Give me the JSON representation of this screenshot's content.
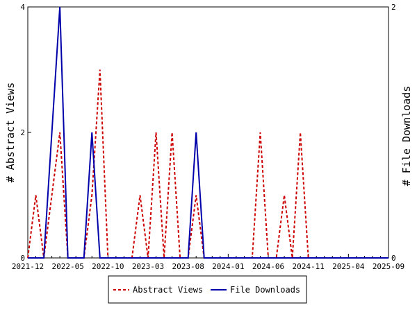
{
  "chart_data": {
    "type": "line",
    "x_tick_labels": [
      "2021-12",
      "2022-05",
      "2022-10",
      "2023-03",
      "2023-08",
      "2024-01",
      "2024-06",
      "2024-11",
      "2025-04",
      "2025-09"
    ],
    "y_left": {
      "label": "# Abstract Views",
      "ylim": [
        0,
        4
      ],
      "ticks": [
        "0",
        "2",
        "4"
      ]
    },
    "y_right": {
      "label": "# File Downloads",
      "ylim": [
        0,
        2
      ],
      "ticks": [
        "0",
        "2"
      ]
    },
    "grid": false,
    "legend_position": "bottom",
    "series": [
      {
        "name": "Abstract Views",
        "axis": "left",
        "color": "#cc0000",
        "style": "dashed",
        "points": [
          [
            "2021-12",
            0
          ],
          [
            "2022-01",
            1
          ],
          [
            "2022-02",
            0
          ],
          [
            "2022-03",
            1
          ],
          [
            "2022-04",
            2
          ],
          [
            "2022-05",
            0
          ],
          [
            "2022-06",
            0
          ],
          [
            "2022-07",
            0
          ],
          [
            "2022-08",
            1
          ],
          [
            "2022-09",
            3
          ],
          [
            "2022-10",
            0
          ],
          [
            "2022-11",
            0
          ],
          [
            "2022-12",
            0
          ],
          [
            "2023-01",
            0
          ],
          [
            "2023-02",
            1
          ],
          [
            "2023-03",
            0
          ],
          [
            "2023-04",
            2
          ],
          [
            "2023-05",
            0
          ],
          [
            "2023-06",
            2
          ],
          [
            "2023-07",
            0
          ],
          [
            "2023-08",
            0
          ],
          [
            "2023-09",
            1
          ],
          [
            "2023-10",
            0
          ],
          [
            "2023-11",
            0
          ],
          [
            "2023-12",
            0
          ],
          [
            "2024-01",
            0
          ],
          [
            "2024-02",
            0
          ],
          [
            "2024-03",
            0
          ],
          [
            "2024-04",
            0
          ],
          [
            "2024-05",
            2
          ],
          [
            "2024-06",
            0
          ],
          [
            "2024-07",
            0
          ],
          [
            "2024-08",
            1
          ],
          [
            "2024-09",
            0
          ],
          [
            "2024-10",
            2
          ],
          [
            "2024-11",
            0
          ],
          [
            "2024-12",
            0
          ],
          [
            "2025-01",
            0
          ],
          [
            "2025-02",
            0
          ],
          [
            "2025-03",
            0
          ],
          [
            "2025-04",
            0
          ],
          [
            "2025-05",
            0
          ],
          [
            "2025-06",
            0
          ],
          [
            "2025-07",
            0
          ],
          [
            "2025-08",
            0
          ],
          [
            "2025-09",
            0
          ]
        ]
      },
      {
        "name": "File Downloads",
        "axis": "right",
        "color": "#0000aa",
        "style": "solid",
        "points": [
          [
            "2021-12",
            0
          ],
          [
            "2022-01",
            0
          ],
          [
            "2022-02",
            0
          ],
          [
            "2022-03",
            1
          ],
          [
            "2022-04",
            2
          ],
          [
            "2022-05",
            0
          ],
          [
            "2022-06",
            0
          ],
          [
            "2022-07",
            0
          ],
          [
            "2022-08",
            1
          ],
          [
            "2022-09",
            0
          ],
          [
            "2022-10",
            0
          ],
          [
            "2022-11",
            0
          ],
          [
            "2022-12",
            0
          ],
          [
            "2023-01",
            0
          ],
          [
            "2023-02",
            0
          ],
          [
            "2023-03",
            0
          ],
          [
            "2023-04",
            0
          ],
          [
            "2023-05",
            0
          ],
          [
            "2023-06",
            0
          ],
          [
            "2023-07",
            0
          ],
          [
            "2023-08",
            0
          ],
          [
            "2023-09",
            1
          ],
          [
            "2023-10",
            0
          ],
          [
            "2023-11",
            0
          ],
          [
            "2023-12",
            0
          ],
          [
            "2024-01",
            0
          ],
          [
            "2024-02",
            0
          ],
          [
            "2024-03",
            0
          ],
          [
            "2024-04",
            0
          ],
          [
            "2024-05",
            0
          ],
          [
            "2024-06",
            0
          ],
          [
            "2024-07",
            0
          ],
          [
            "2024-08",
            0
          ],
          [
            "2024-09",
            0
          ],
          [
            "2024-10",
            0
          ],
          [
            "2024-11",
            0
          ],
          [
            "2024-12",
            0
          ],
          [
            "2025-01",
            0
          ],
          [
            "2025-02",
            0
          ],
          [
            "2025-03",
            0
          ],
          [
            "2025-04",
            0
          ],
          [
            "2025-05",
            0
          ],
          [
            "2025-06",
            0
          ],
          [
            "2025-07",
            0
          ],
          [
            "2025-08",
            0
          ],
          [
            "2025-09",
            0
          ]
        ]
      }
    ]
  }
}
